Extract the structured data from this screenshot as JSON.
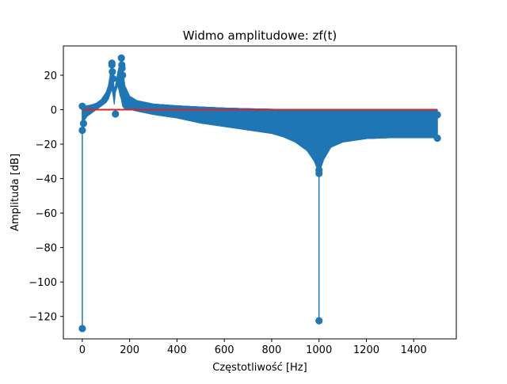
{
  "chart_data": {
    "type": "stem",
    "title": "Widmo amplitudowe: zf(t)",
    "xlabel": "Częstotliwość [Hz]",
    "ylabel": "Amplituda [dB]",
    "xlim": [
      -80,
      1580
    ],
    "ylim": [
      -133,
      37
    ],
    "xticks": [
      0,
      200,
      400,
      600,
      800,
      1000,
      1200,
      1400
    ],
    "yticks": [
      -120,
      -100,
      -80,
      -60,
      -40,
      -20,
      0,
      20
    ],
    "baseline": 0,
    "colors": {
      "stem": "#1f77b4",
      "baseline": "#d62728"
    },
    "series": [
      {
        "envelope": {
          "f": [
            0,
            5,
            10,
            20,
            40,
            60,
            80,
            100,
            110,
            120,
            125,
            130,
            135,
            140,
            150,
            160,
            165,
            170,
            180,
            200,
            230,
            300,
            400,
            500,
            600,
            700,
            800,
            850,
            900,
            950,
            980,
            1000,
            1020,
            1050,
            1100,
            1200,
            1300,
            1400,
            1500
          ],
          "upper": [
            2,
            2,
            2,
            2.5,
            3,
            4,
            6,
            10,
            14,
            22,
            27,
            20,
            12,
            14,
            22,
            27,
            30,
            24,
            14,
            8,
            5.5,
            3.5,
            2.5,
            1.8,
            1.2,
            0.8,
            0.5,
            0.4,
            0.3,
            0.3,
            0.3,
            0.3,
            0.3,
            0.3,
            0.2,
            0.2,
            0.1,
            0.1,
            0.1
          ],
          "lower": [
            -5,
            -8,
            -6,
            -4,
            -2,
            0,
            2,
            4,
            6,
            10,
            12,
            8,
            3,
            10,
            14,
            8,
            6,
            2,
            0.3,
            0,
            -1,
            -3,
            -5,
            -8,
            -10,
            -12,
            -14,
            -16,
            -19,
            -24,
            -30,
            -37,
            -29,
            -22,
            -19,
            -17,
            -16.5,
            -16.5,
            -16.5
          ]
        },
        "markers": [
          {
            "f": 0,
            "amp": -127
          },
          {
            "f": 0,
            "amp": -12
          },
          {
            "f": 0,
            "amp": 2
          },
          {
            "f": 5,
            "amp": -8
          },
          {
            "f": 125,
            "amp": 27
          },
          {
            "f": 125,
            "amp": 26
          },
          {
            "f": 127,
            "amp": 22
          },
          {
            "f": 130,
            "amp": 18
          },
          {
            "f": 140,
            "amp": -2.5
          },
          {
            "f": 165,
            "amp": 30
          },
          {
            "f": 167,
            "amp": 26
          },
          {
            "f": 168,
            "amp": 24
          },
          {
            "f": 170,
            "amp": 20
          },
          {
            "f": 1000,
            "amp": -122.5
          },
          {
            "f": 1000,
            "amp": -37
          },
          {
            "f": 1000,
            "amp": -35
          },
          {
            "f": 1500,
            "amp": -3
          },
          {
            "f": 1500,
            "amp": -16.5
          }
        ]
      }
    ]
  }
}
